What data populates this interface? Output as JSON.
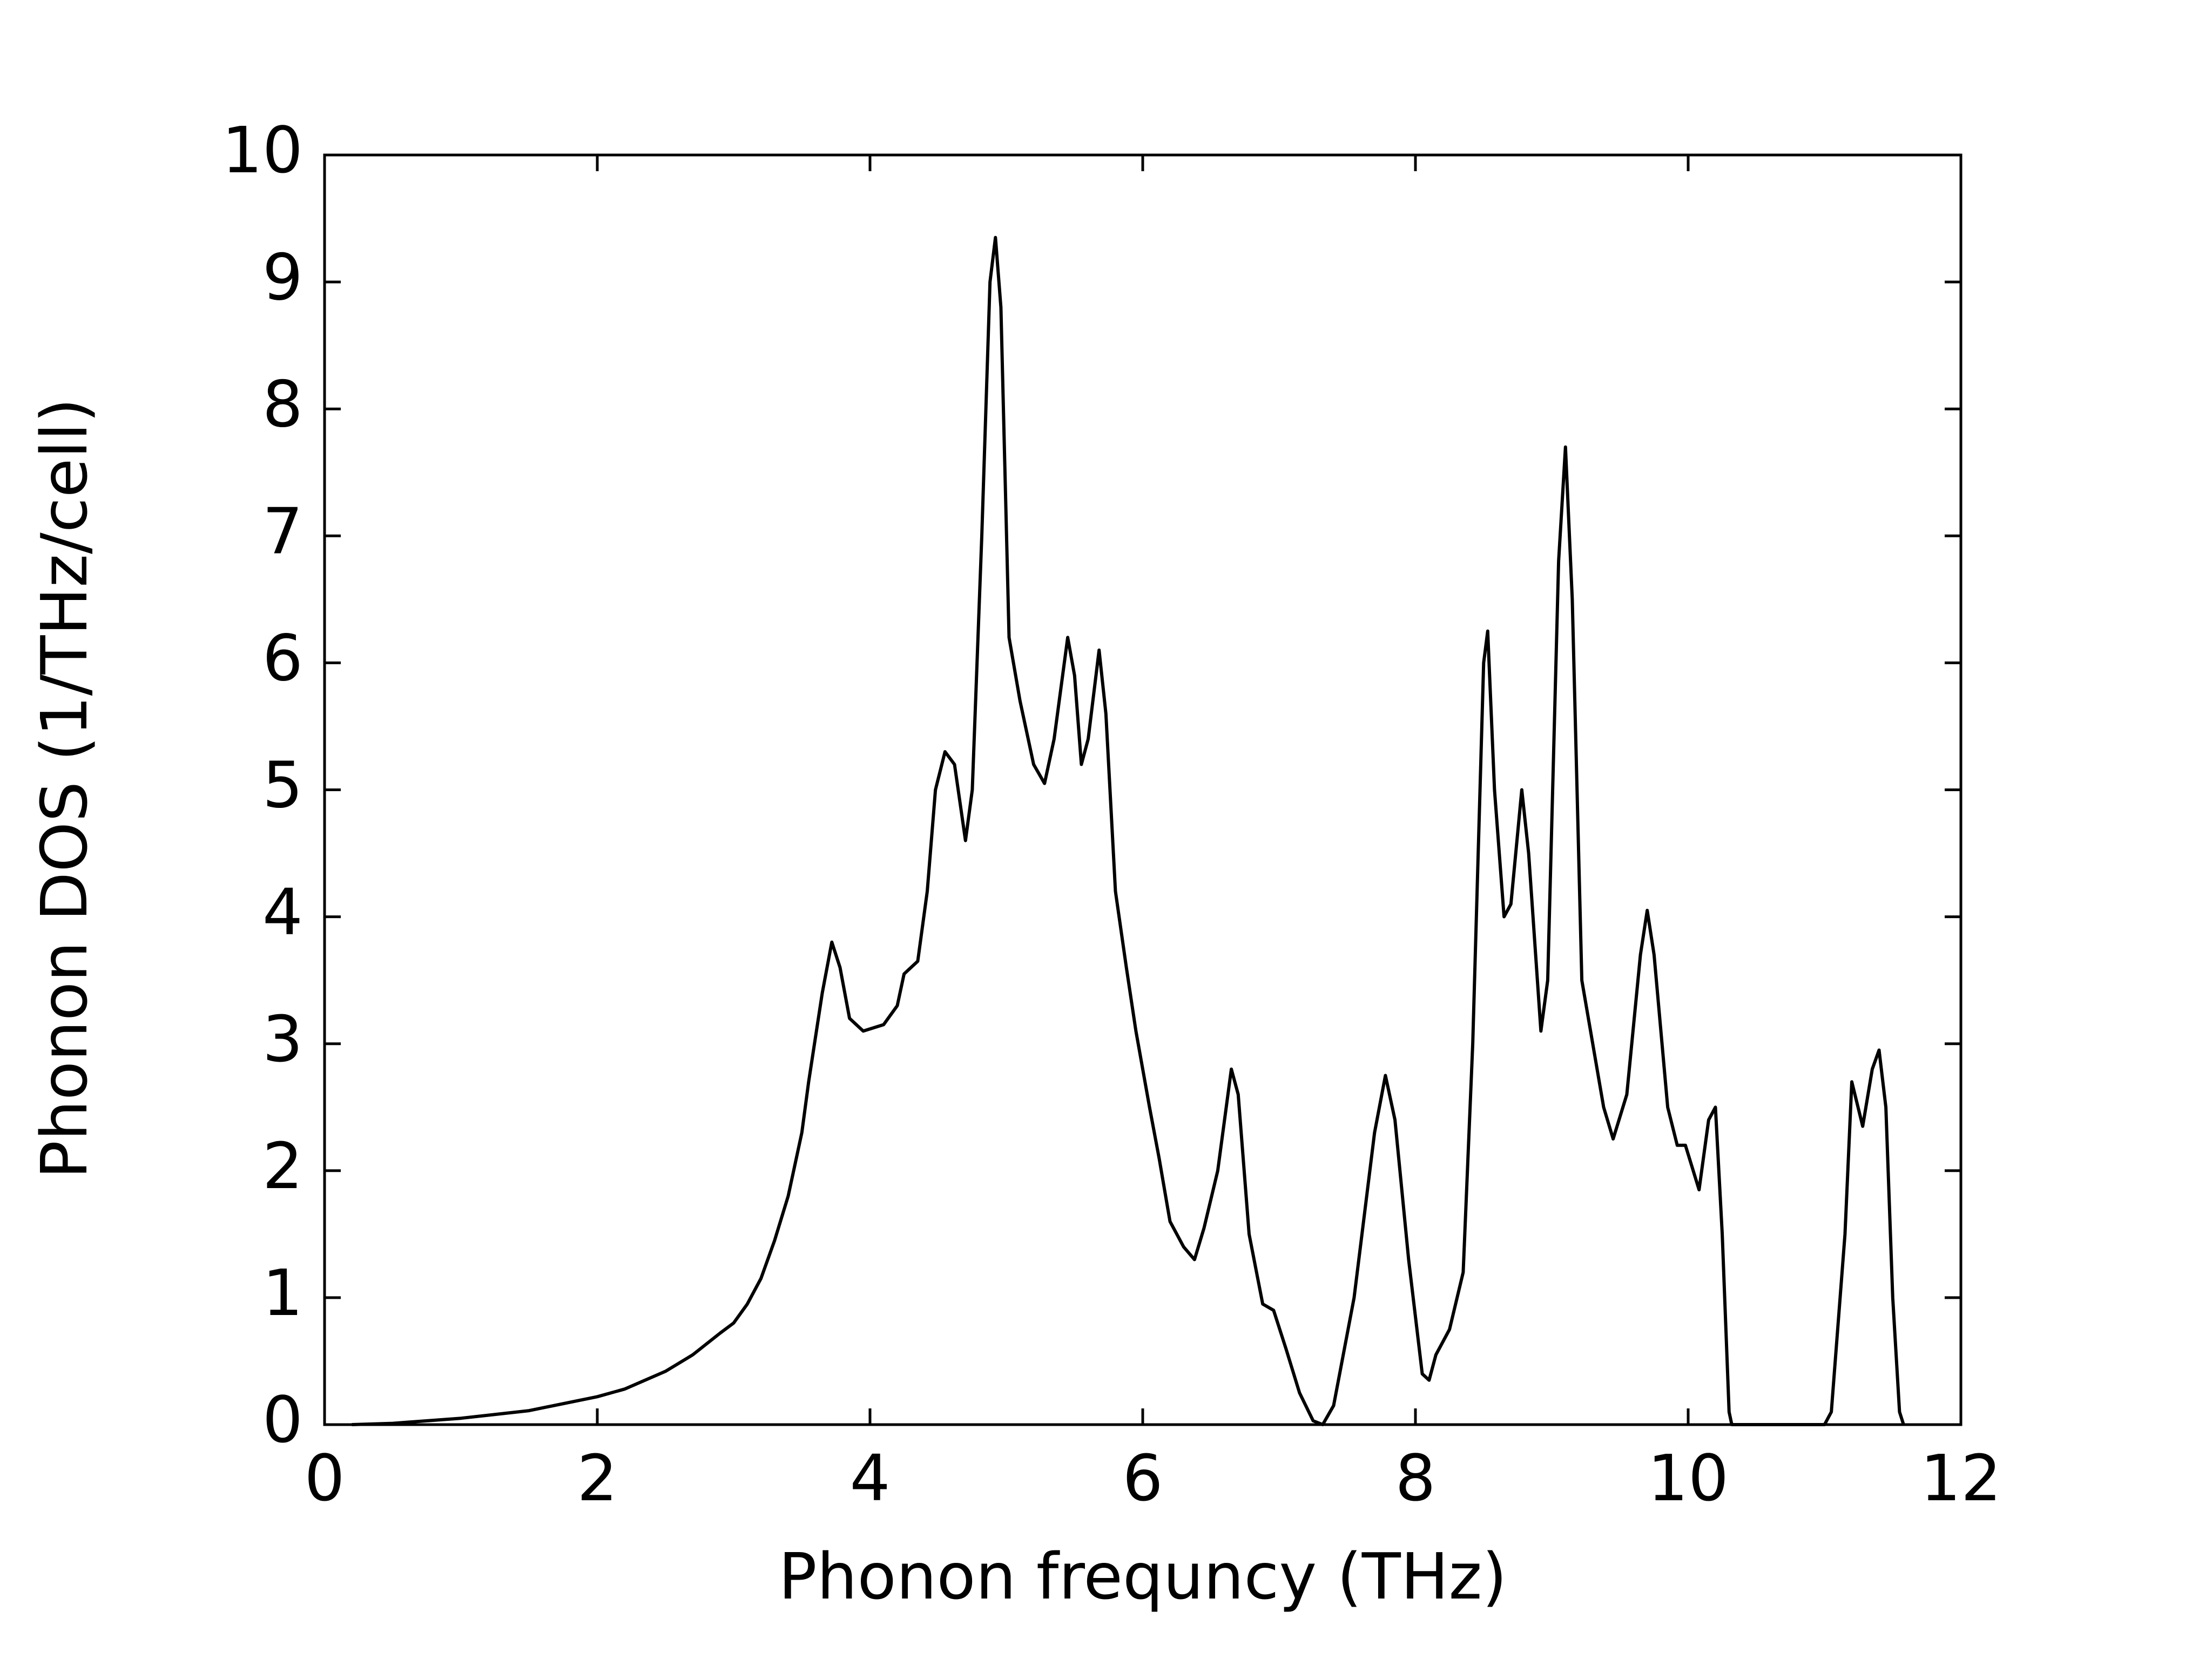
{
  "chart_data": {
    "type": "line",
    "x_label": "Phonon frequncy (THz)",
    "y_label": "Phonon DOS (1/THz/cell)",
    "xlim": [
      0,
      12
    ],
    "ylim": [
      0,
      10
    ],
    "xticks": [
      0,
      2,
      4,
      6,
      8,
      10,
      12
    ],
    "yticks": [
      0,
      1,
      2,
      3,
      4,
      5,
      6,
      7,
      8,
      9,
      10
    ],
    "grid": false,
    "series": [
      {
        "color": "#000000",
        "x": [
          0.2,
          0.5,
          1.0,
          1.5,
          2.0,
          2.2,
          2.5,
          2.7,
          2.9,
          3.0,
          3.1,
          3.2,
          3.3,
          3.4,
          3.5,
          3.55,
          3.65,
          3.72,
          3.78,
          3.85,
          3.95,
          4.1,
          4.2,
          4.25,
          4.35,
          4.42,
          4.48,
          4.55,
          4.62,
          4.7,
          4.75,
          4.82,
          4.88,
          4.92,
          4.96,
          5.02,
          5.1,
          5.2,
          5.28,
          5.35,
          5.45,
          5.5,
          5.55,
          5.6,
          5.68,
          5.73,
          5.8,
          5.88,
          5.95,
          6.05,
          6.12,
          6.2,
          6.3,
          6.38,
          6.45,
          6.55,
          6.65,
          6.7,
          6.78,
          6.88,
          6.96,
          7.05,
          7.15,
          7.25,
          7.32,
          7.4,
          7.55,
          7.7,
          7.78,
          7.85,
          7.95,
          8.05,
          8.1,
          8.15,
          8.25,
          8.35,
          8.42,
          8.5,
          8.53,
          8.58,
          8.65,
          8.7,
          8.78,
          8.83,
          8.92,
          8.97,
          9.05,
          9.1,
          9.15,
          9.22,
          9.3,
          9.38,
          9.45,
          9.55,
          9.65,
          9.7,
          9.75,
          9.85,
          9.92,
          9.98,
          10.08,
          10.15,
          10.2,
          10.25,
          10.3,
          10.32,
          11.0,
          11.05,
          11.15,
          11.2,
          11.28,
          11.35,
          11.4,
          11.45,
          11.5,
          11.55,
          11.58
        ],
        "values": [
          0,
          0.01,
          0.05,
          0.11,
          0.22,
          0.28,
          0.42,
          0.55,
          0.72,
          0.8,
          0.95,
          1.15,
          1.45,
          1.8,
          2.3,
          2.7,
          3.4,
          3.8,
          3.6,
          3.2,
          3.1,
          3.15,
          3.3,
          3.55,
          3.65,
          4.2,
          5.0,
          5.3,
          5.2,
          4.6,
          5.0,
          7.0,
          9.0,
          9.35,
          8.8,
          6.2,
          5.7,
          5.2,
          5.05,
          5.4,
          6.2,
          5.9,
          5.2,
          5.4,
          6.1,
          5.6,
          4.2,
          3.6,
          3.1,
          2.5,
          2.1,
          1.6,
          1.4,
          1.3,
          1.55,
          2.0,
          2.8,
          2.6,
          1.5,
          0.95,
          0.9,
          0.6,
          0.25,
          0.03,
          0,
          0.15,
          1.0,
          2.3,
          2.75,
          2.4,
          1.3,
          0.4,
          0.35,
          0.55,
          0.75,
          1.2,
          3.0,
          6.0,
          6.25,
          5.0,
          4.0,
          4.1,
          5.0,
          4.5,
          3.1,
          3.5,
          6.8,
          7.7,
          6.5,
          3.5,
          3.0,
          2.5,
          2.25,
          2.6,
          3.7,
          4.05,
          3.7,
          2.5,
          2.2,
          2.2,
          1.85,
          2.4,
          2.5,
          1.5,
          0.1,
          0,
          0,
          0.1,
          1.5,
          2.7,
          2.35,
          2.8,
          2.95,
          2.5,
          1.0,
          0.1,
          0
        ]
      }
    ]
  }
}
